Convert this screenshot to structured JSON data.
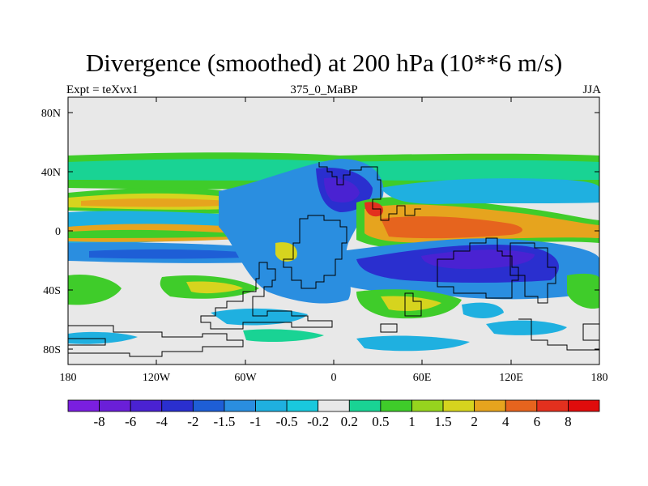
{
  "title": "Divergence (smoothed) at 200 hPa (10**6 m/s)",
  "left_label": "Expt = teXvx1",
  "center_label": "375_0_MaBP",
  "right_label": "JJA",
  "lat_ticks": [
    "80N",
    "40N",
    "0",
    "40S",
    "80S"
  ],
  "lon_ticks": [
    "180",
    "120W",
    "60W",
    "0",
    "60E",
    "120E",
    "180"
  ],
  "colorbar": {
    "labels": [
      "-8",
      "-6",
      "-4",
      "-2",
      "-1.5",
      "-1",
      "-0.5",
      "-0.2",
      "0.2",
      "0.5",
      "1",
      "1.5",
      "2",
      "4",
      "6",
      "8"
    ],
    "colors": [
      "#7a1fe0",
      "#6a1fd8",
      "#4a22d2",
      "#2a2fcf",
      "#1e5ed6",
      "#2a8ee0",
      "#1fb0e0",
      "#19c8dd",
      "#e8e8e8",
      "#19d394",
      "#3fcc2a",
      "#96d41e",
      "#d6d41e",
      "#e6a41e",
      "#e6641e",
      "#e3301e",
      "#e00c0c"
    ]
  },
  "colors": {
    "ocean_gray": "#e8e8e8",
    "frame": "#000000"
  }
}
